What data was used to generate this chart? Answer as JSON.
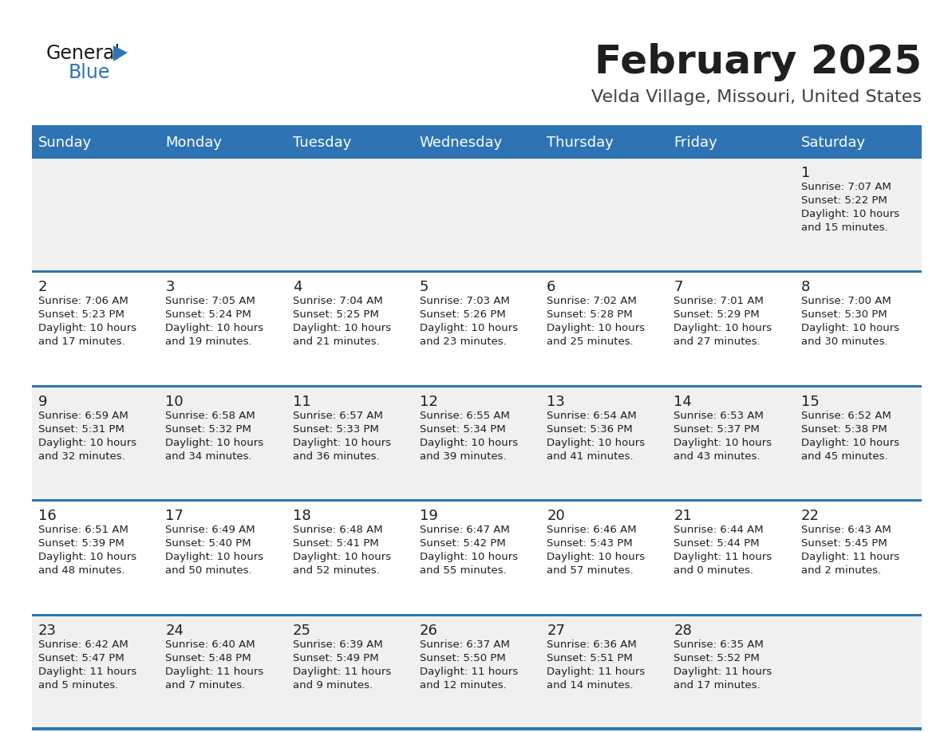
{
  "title": "February 2025",
  "subtitle": "Velda Village, Missouri, United States",
  "header_bg": "#2E74B5",
  "header_text_color": "#FFFFFF",
  "cell_bg_odd": "#FFFFFF",
  "cell_bg_even": "#F0F0F0",
  "border_color": "#2E74B5",
  "day_headers": [
    "Sunday",
    "Monday",
    "Tuesday",
    "Wednesday",
    "Thursday",
    "Friday",
    "Saturday"
  ],
  "title_color": "#1F1F1F",
  "subtitle_color": "#404040",
  "cell_text_color": "#1F1F1F",
  "logo_general_color": "#1A1A1A",
  "logo_blue_color": "#2E74B5",
  "logo_triangle_color": "#2E74B5",
  "calendar_data": [
    [
      null,
      null,
      null,
      null,
      null,
      null,
      {
        "day": "1",
        "sunrise": "7:07 AM",
        "sunset": "5:22 PM",
        "daylight": "10 hours",
        "daylight2": "and 15 minutes."
      }
    ],
    [
      {
        "day": "2",
        "sunrise": "7:06 AM",
        "sunset": "5:23 PM",
        "daylight": "10 hours",
        "daylight2": "and 17 minutes."
      },
      {
        "day": "3",
        "sunrise": "7:05 AM",
        "sunset": "5:24 PM",
        "daylight": "10 hours",
        "daylight2": "and 19 minutes."
      },
      {
        "day": "4",
        "sunrise": "7:04 AM",
        "sunset": "5:25 PM",
        "daylight": "10 hours",
        "daylight2": "and 21 minutes."
      },
      {
        "day": "5",
        "sunrise": "7:03 AM",
        "sunset": "5:26 PM",
        "daylight": "10 hours",
        "daylight2": "and 23 minutes."
      },
      {
        "day": "6",
        "sunrise": "7:02 AM",
        "sunset": "5:28 PM",
        "daylight": "10 hours",
        "daylight2": "and 25 minutes."
      },
      {
        "day": "7",
        "sunrise": "7:01 AM",
        "sunset": "5:29 PM",
        "daylight": "10 hours",
        "daylight2": "and 27 minutes."
      },
      {
        "day": "8",
        "sunrise": "7:00 AM",
        "sunset": "5:30 PM",
        "daylight": "10 hours",
        "daylight2": "and 30 minutes."
      }
    ],
    [
      {
        "day": "9",
        "sunrise": "6:59 AM",
        "sunset": "5:31 PM",
        "daylight": "10 hours",
        "daylight2": "and 32 minutes."
      },
      {
        "day": "10",
        "sunrise": "6:58 AM",
        "sunset": "5:32 PM",
        "daylight": "10 hours",
        "daylight2": "and 34 minutes."
      },
      {
        "day": "11",
        "sunrise": "6:57 AM",
        "sunset": "5:33 PM",
        "daylight": "10 hours",
        "daylight2": "and 36 minutes."
      },
      {
        "day": "12",
        "sunrise": "6:55 AM",
        "sunset": "5:34 PM",
        "daylight": "10 hours",
        "daylight2": "and 39 minutes."
      },
      {
        "day": "13",
        "sunrise": "6:54 AM",
        "sunset": "5:36 PM",
        "daylight": "10 hours",
        "daylight2": "and 41 minutes."
      },
      {
        "day": "14",
        "sunrise": "6:53 AM",
        "sunset": "5:37 PM",
        "daylight": "10 hours",
        "daylight2": "and 43 minutes."
      },
      {
        "day": "15",
        "sunrise": "6:52 AM",
        "sunset": "5:38 PM",
        "daylight": "10 hours",
        "daylight2": "and 45 minutes."
      }
    ],
    [
      {
        "day": "16",
        "sunrise": "6:51 AM",
        "sunset": "5:39 PM",
        "daylight": "10 hours",
        "daylight2": "and 48 minutes."
      },
      {
        "day": "17",
        "sunrise": "6:49 AM",
        "sunset": "5:40 PM",
        "daylight": "10 hours",
        "daylight2": "and 50 minutes."
      },
      {
        "day": "18",
        "sunrise": "6:48 AM",
        "sunset": "5:41 PM",
        "daylight": "10 hours",
        "daylight2": "and 52 minutes."
      },
      {
        "day": "19",
        "sunrise": "6:47 AM",
        "sunset": "5:42 PM",
        "daylight": "10 hours",
        "daylight2": "and 55 minutes."
      },
      {
        "day": "20",
        "sunrise": "6:46 AM",
        "sunset": "5:43 PM",
        "daylight": "10 hours",
        "daylight2": "and 57 minutes."
      },
      {
        "day": "21",
        "sunrise": "6:44 AM",
        "sunset": "5:44 PM",
        "daylight": "11 hours",
        "daylight2": "and 0 minutes."
      },
      {
        "day": "22",
        "sunrise": "6:43 AM",
        "sunset": "5:45 PM",
        "daylight": "11 hours",
        "daylight2": "and 2 minutes."
      }
    ],
    [
      {
        "day": "23",
        "sunrise": "6:42 AM",
        "sunset": "5:47 PM",
        "daylight": "11 hours",
        "daylight2": "and 5 minutes."
      },
      {
        "day": "24",
        "sunrise": "6:40 AM",
        "sunset": "5:48 PM",
        "daylight": "11 hours",
        "daylight2": "and 7 minutes."
      },
      {
        "day": "25",
        "sunrise": "6:39 AM",
        "sunset": "5:49 PM",
        "daylight": "11 hours",
        "daylight2": "and 9 minutes."
      },
      {
        "day": "26",
        "sunrise": "6:37 AM",
        "sunset": "5:50 PM",
        "daylight": "11 hours",
        "daylight2": "and 12 minutes."
      },
      {
        "day": "27",
        "sunrise": "6:36 AM",
        "sunset": "5:51 PM",
        "daylight": "11 hours",
        "daylight2": "and 14 minutes."
      },
      {
        "day": "28",
        "sunrise": "6:35 AM",
        "sunset": "5:52 PM",
        "daylight": "11 hours",
        "daylight2": "and 17 minutes."
      },
      null
    ]
  ]
}
